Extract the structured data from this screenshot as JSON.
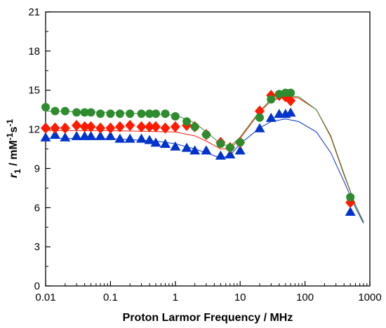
{
  "chart_data": {
    "type": "scatter",
    "xlabel": "Proton Larmor Frequency / MHz",
    "ylabel": {
      "symbol": "r",
      "subscript": "1",
      "units": " / mM",
      "exp1": "-1",
      "mid": "s",
      "exp2": "-1"
    },
    "xscale": "log",
    "xlim": [
      0.01,
      1000
    ],
    "ylim": [
      0,
      21
    ],
    "xticks": [
      {
        "value": 0.01,
        "label": "0.01"
      },
      {
        "value": 0.1,
        "label": "0.1"
      },
      {
        "value": 1,
        "label": "1"
      },
      {
        "value": 10,
        "label": "10"
      },
      {
        "value": 100,
        "label": "100"
      },
      {
        "value": 1000,
        "label": "1000"
      }
    ],
    "yticks": [
      {
        "value": 0,
        "label": "0"
      },
      {
        "value": 3,
        "label": "3"
      },
      {
        "value": 6,
        "label": "6"
      },
      {
        "value": 9,
        "label": "9"
      },
      {
        "value": 12,
        "label": "12"
      },
      {
        "value": 15,
        "label": "15"
      },
      {
        "value": 18,
        "label": "18"
      },
      {
        "value": 21,
        "label": "21"
      }
    ],
    "grid": false,
    "legend": "none",
    "series": [
      {
        "marker": "circle",
        "color": "#2e8b2e",
        "x": [
          0.01,
          0.014,
          0.02,
          0.03,
          0.04,
          0.05,
          0.07,
          0.1,
          0.14,
          0.2,
          0.3,
          0.4,
          0.5,
          0.7,
          1.0,
          1.5,
          2.0,
          3.0,
          5.0,
          7.0,
          10,
          20,
          30,
          40,
          50,
          60,
          500
        ],
        "values": [
          13.7,
          13.4,
          13.4,
          13.3,
          13.3,
          13.3,
          13.2,
          13.2,
          13.2,
          13.2,
          13.2,
          13.2,
          13.2,
          13.2,
          13.0,
          12.6,
          12.2,
          11.6,
          10.9,
          10.6,
          11.0,
          12.9,
          14.3,
          14.7,
          14.8,
          14.8,
          6.8
        ],
        "fit": [
          [
            0.01,
            13.4
          ],
          [
            0.1,
            13.3
          ],
          [
            1,
            13.1
          ],
          [
            2,
            12.5
          ],
          [
            3,
            11.8
          ],
          [
            5,
            10.9
          ],
          [
            7,
            10.7
          ],
          [
            10,
            11.4
          ],
          [
            20,
            13.4
          ],
          [
            30,
            14.3
          ],
          [
            50,
            14.6
          ],
          [
            80,
            14.5
          ],
          [
            150,
            13.5
          ],
          [
            250,
            11.5
          ],
          [
            400,
            8.6
          ],
          [
            600,
            6.2
          ],
          [
            800,
            4.9
          ]
        ]
      },
      {
        "marker": "diamond",
        "color": "#ff1a00",
        "x": [
          0.01,
          0.014,
          0.02,
          0.03,
          0.04,
          0.05,
          0.07,
          0.1,
          0.14,
          0.2,
          0.3,
          0.4,
          0.5,
          0.7,
          1.0,
          1.5,
          2.0,
          3.0,
          5.0,
          7.0,
          10,
          20,
          30,
          40,
          50,
          60,
          500
        ],
        "values": [
          12.1,
          12.1,
          12.1,
          12.3,
          12.2,
          12.2,
          12.1,
          12.1,
          12.2,
          12.3,
          12.2,
          12.2,
          12.2,
          12.1,
          12.2,
          12.3,
          12.2,
          11.6,
          11.0,
          10.6,
          11.0,
          13.4,
          14.6,
          14.6,
          14.5,
          14.2,
          6.4
        ],
        "fit": [
          [
            0.01,
            11.9
          ],
          [
            0.1,
            11.9
          ],
          [
            1,
            11.8
          ],
          [
            2,
            11.5
          ],
          [
            3,
            11.1
          ],
          [
            5,
            10.5
          ],
          [
            7,
            10.5
          ],
          [
            10,
            11.3
          ],
          [
            20,
            13.3
          ],
          [
            30,
            14.2
          ],
          [
            50,
            14.5
          ],
          [
            80,
            14.4
          ],
          [
            150,
            13.5
          ],
          [
            250,
            11.4
          ],
          [
            400,
            8.5
          ],
          [
            600,
            6.2
          ],
          [
            800,
            4.9
          ]
        ]
      },
      {
        "marker": "triangle",
        "color": "#0033cc",
        "x": [
          0.01,
          0.014,
          0.02,
          0.03,
          0.04,
          0.05,
          0.07,
          0.1,
          0.14,
          0.2,
          0.3,
          0.4,
          0.5,
          0.7,
          1.0,
          1.5,
          2.0,
          3.0,
          5.0,
          7.0,
          10,
          20,
          30,
          40,
          50,
          60,
          500
        ],
        "values": [
          11.4,
          11.6,
          11.4,
          11.5,
          11.5,
          11.5,
          11.5,
          11.5,
          11.3,
          11.3,
          11.3,
          11.2,
          11.0,
          10.9,
          10.7,
          10.6,
          10.4,
          10.4,
          10.0,
          10.1,
          10.4,
          12.1,
          12.9,
          13.2,
          13.2,
          13.3,
          5.7
        ],
        "fit": [
          [
            0.01,
            11.3
          ],
          [
            0.1,
            11.3
          ],
          [
            0.5,
            11.1
          ],
          [
            1,
            10.9
          ],
          [
            2,
            10.5
          ],
          [
            3,
            10.2
          ],
          [
            5,
            9.8
          ],
          [
            7,
            10.0
          ],
          [
            10,
            10.9
          ],
          [
            20,
            12.1
          ],
          [
            30,
            12.6
          ],
          [
            50,
            12.8
          ],
          [
            80,
            12.6
          ],
          [
            150,
            11.8
          ],
          [
            250,
            10.2
          ],
          [
            400,
            8.0
          ],
          [
            600,
            6.0
          ],
          [
            800,
            4.8
          ]
        ]
      }
    ]
  }
}
